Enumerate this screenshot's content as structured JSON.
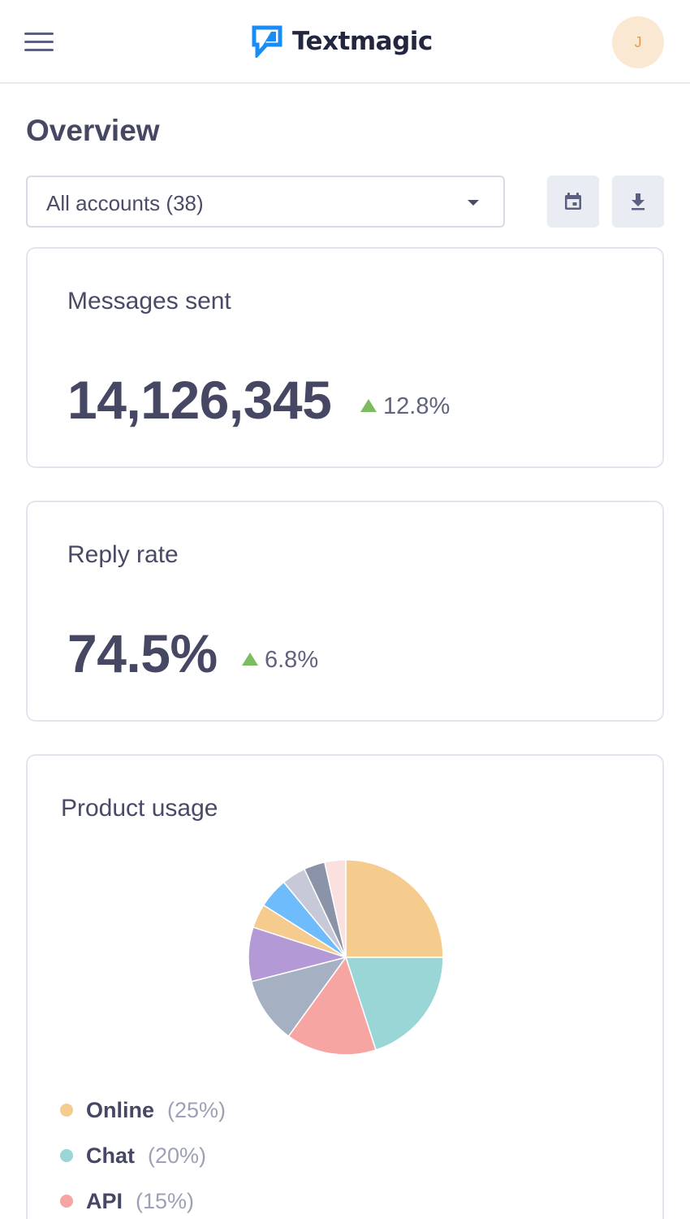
{
  "header": {
    "brand": "Textmagic",
    "avatar_initial": "J",
    "avatar_color": "#fbe8d2"
  },
  "page": {
    "title": "Overview"
  },
  "filters": {
    "account_select_value": "All accounts (38)",
    "calendar_icon": "calendar-icon",
    "download_icon": "download-icon"
  },
  "cards": {
    "messages_sent": {
      "title": "Messages sent",
      "value": "14,126,345",
      "delta": "12.8%",
      "trend": "up"
    },
    "reply_rate": {
      "title": "Reply rate",
      "value": "74.5%",
      "delta": "6.8%",
      "trend": "up"
    },
    "product_usage": {
      "title": "Product usage"
    }
  },
  "chart_data": {
    "type": "pie",
    "slices": [
      {
        "label": "Online",
        "percent": 25,
        "color": "#f5cb8e",
        "legend_pct": "(25%)"
      },
      {
        "label": "Chat",
        "percent": 20,
        "color": "#9ad6d6",
        "legend_pct": "(20%)"
      },
      {
        "label": "API",
        "percent": 15,
        "color": "#f6a5a2",
        "legend_pct": "(15%)"
      },
      {
        "percent": 11,
        "color": "#a5b0c2"
      },
      {
        "percent": 9,
        "color": "#b39ad6"
      },
      {
        "percent": 4,
        "color": "#f5cb8e"
      },
      {
        "percent": 5,
        "color": "#6ebcfb"
      },
      {
        "percent": 4,
        "color": "#c8c9d8"
      },
      {
        "percent": 3.5,
        "color": "#8a93a8"
      },
      {
        "percent": 3.5,
        "color": "#fbe0e0"
      }
    ]
  },
  "colors": {
    "up_indicator": "#7cbc5e",
    "brand_blue": "#1a8cf7"
  }
}
